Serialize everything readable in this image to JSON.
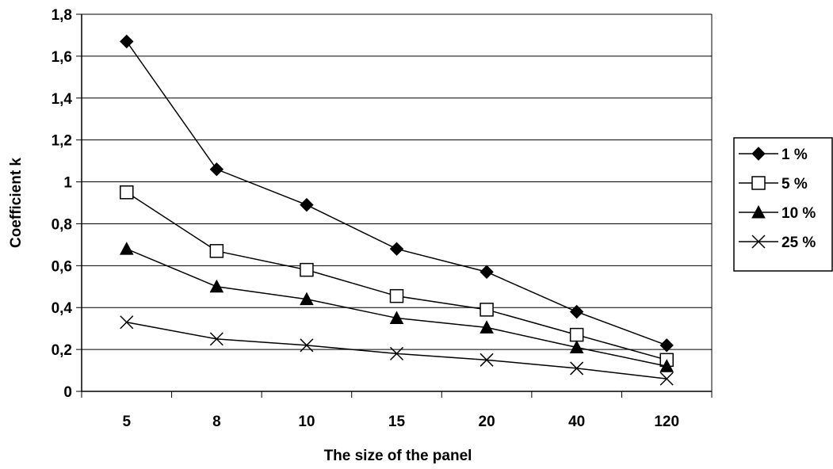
{
  "chart_data": {
    "type": "line",
    "title": "",
    "xlabel": "The size of the panel",
    "ylabel": "Coefficient k",
    "categories": [
      "5",
      "8",
      "10",
      "15",
      "20",
      "40",
      "120"
    ],
    "ylim": [
      0,
      1.8
    ],
    "yticks": [
      "0",
      "0,2",
      "0,4",
      "0,6",
      "0,8",
      "1",
      "1,2",
      "1,4",
      "1,6",
      "1,8"
    ],
    "grid": true,
    "legend_position": "right",
    "series": [
      {
        "name": "1 %",
        "marker": "filled-diamond",
        "values": [
          1.67,
          1.06,
          0.89,
          0.68,
          0.57,
          0.38,
          0.22
        ]
      },
      {
        "name": "5 %",
        "marker": "open-square",
        "values": [
          0.95,
          0.67,
          0.58,
          0.455,
          0.39,
          0.27,
          0.15
        ]
      },
      {
        "name": "10 %",
        "marker": "filled-triangle",
        "values": [
          0.68,
          0.5,
          0.44,
          0.35,
          0.305,
          0.21,
          0.12
        ]
      },
      {
        "name": "25 %",
        "marker": "x-cross",
        "values": [
          0.33,
          0.25,
          0.22,
          0.18,
          0.15,
          0.11,
          0.06
        ]
      }
    ],
    "line_color": "#000000"
  }
}
